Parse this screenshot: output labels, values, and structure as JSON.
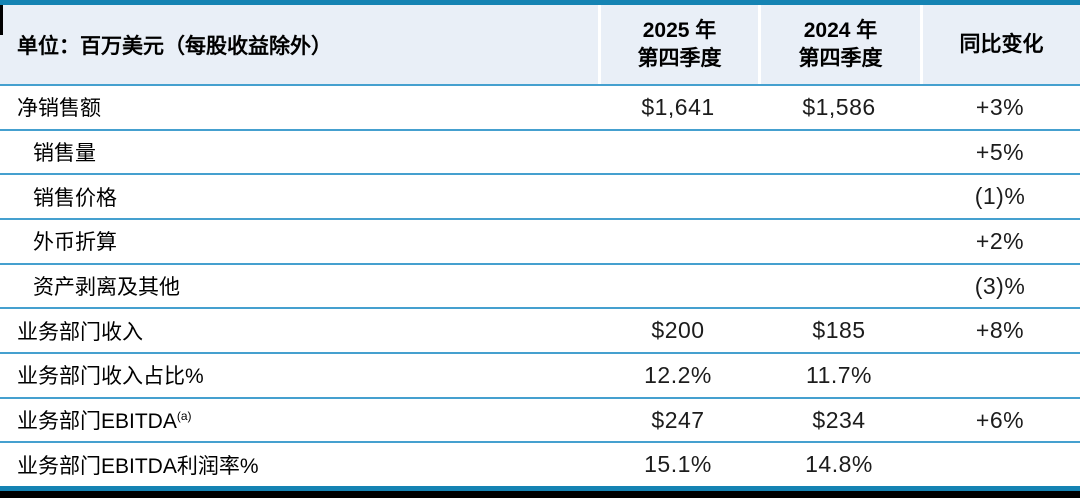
{
  "colors": {
    "accent_border": "#1583b3",
    "row_divider": "#45a0cf",
    "header_bg": "#e9eff7",
    "text": "#141414",
    "bottom_bar": "#000000",
    "cell_divider": "#ffffff"
  },
  "table": {
    "unit_label": "单位：百万美元（每股收益除外）",
    "columns": [
      {
        "line1": "2025 年",
        "line2": "第四季度"
      },
      {
        "line1": "2024 年",
        "line2": "第四季度"
      },
      {
        "label": "同比变化"
      }
    ],
    "rows": [
      {
        "label": "净销售额",
        "q4_2025": "$1,641",
        "q4_2024": "$1,586",
        "yoy_change": "+3%"
      },
      {
        "label": "销售量",
        "q4_2025": "",
        "q4_2024": "",
        "yoy_change": "+5%"
      },
      {
        "label": "销售价格",
        "q4_2025": "",
        "q4_2024": "",
        "yoy_change": "(1)%"
      },
      {
        "label": "外币折算",
        "q4_2025": "",
        "q4_2024": "",
        "yoy_change": "+2%"
      },
      {
        "label": "资产剥离及其他",
        "q4_2025": "",
        "q4_2024": "",
        "yoy_change": "(3)%"
      },
      {
        "label": "业务部门收入",
        "q4_2025": "$200",
        "q4_2024": "$185",
        "yoy_change": "+8%"
      },
      {
        "label": "业务部门收入占比%",
        "q4_2025": "12.2%",
        "q4_2024": "11.7%",
        "yoy_change": ""
      },
      {
        "label": "业务部门EBITDA",
        "sup": "(a)",
        "q4_2025": "$247",
        "q4_2024": "$234",
        "yoy_change": "+6%"
      },
      {
        "label": "业务部门EBITDA利润率%",
        "q4_2025": "15.1%",
        "q4_2024": "14.8%",
        "yoy_change": ""
      }
    ]
  },
  "chart_data": {
    "type": "table",
    "title": "季度财务摘要",
    "columns": [
      "单位：百万美元（每股收益除外）",
      "2025 年第四季度",
      "2024 年第四季度",
      "同比变化"
    ],
    "rows": [
      [
        "净销售额",
        "$1,641",
        "$1,586",
        "+3%"
      ],
      [
        "销售量",
        "",
        "",
        "+5%"
      ],
      [
        "销售价格",
        "",
        "",
        "(1)%"
      ],
      [
        "外币折算",
        "",
        "",
        "+2%"
      ],
      [
        "资产剥离及其他",
        "",
        "",
        "(3)%"
      ],
      [
        "业务部门收入",
        "$200",
        "$185",
        "+8%"
      ],
      [
        "业务部门收入占比%",
        "12.2%",
        "11.7%",
        ""
      ],
      [
        "业务部门EBITDA(a)",
        "$247",
        "$234",
        "+6%"
      ],
      [
        "业务部门EBITDA利润率%",
        "15.1%",
        "14.8%",
        ""
      ]
    ]
  }
}
